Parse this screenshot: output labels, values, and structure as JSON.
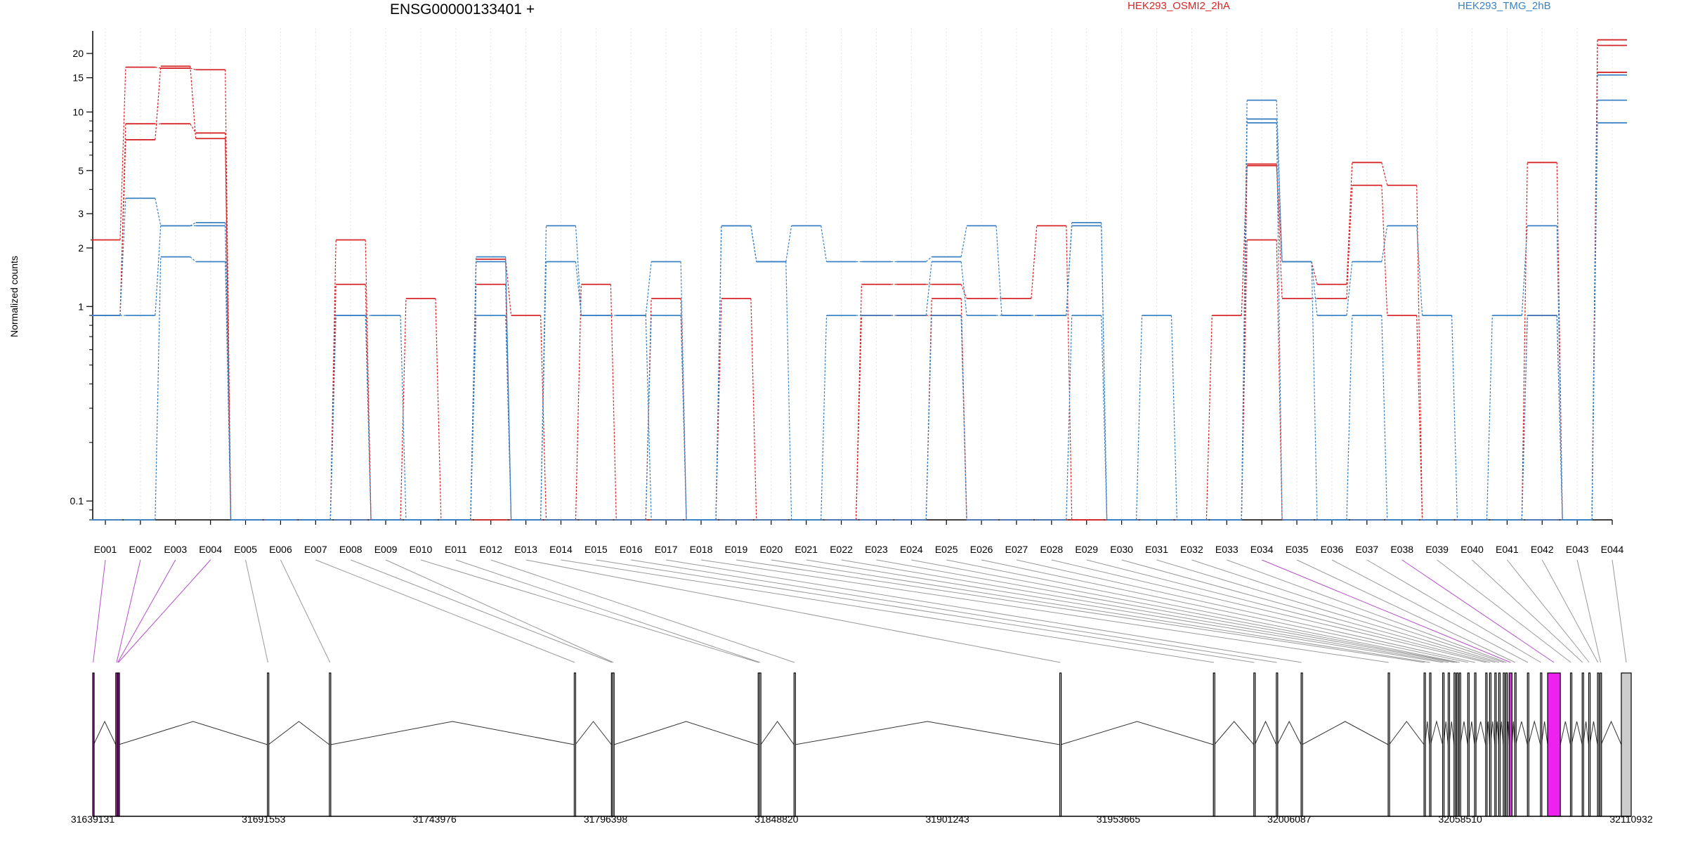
{
  "title": "ENSG00000133401 +",
  "ylabel": "Normalized counts",
  "legend": [
    {
      "name": "HEK293_OSMI2_2hA",
      "color": "#d62728"
    },
    {
      "name": "HEK293_TMG_2hB",
      "color": "#3b82c4"
    }
  ],
  "chart_data": [
    {
      "type": "line",
      "scale": "log",
      "ylabel": "Normalized counts",
      "ylim": [
        0.08,
        27
      ],
      "yticks": [
        0.1,
        1,
        2,
        3,
        5,
        10,
        15,
        20
      ],
      "categories": [
        "E001",
        "E002",
        "E003",
        "E004",
        "E005",
        "E006",
        "E007",
        "E008",
        "E009",
        "E010",
        "E011",
        "E012",
        "E013",
        "E014",
        "E015",
        "E016",
        "E017",
        "E018",
        "E019",
        "E020",
        "E021",
        "E022",
        "E023",
        "E024",
        "E025",
        "E026",
        "E027",
        "E028",
        "E029",
        "E030",
        "E031",
        "E032",
        "E033",
        "E034",
        "E035",
        "E036",
        "E037",
        "E038",
        "E039",
        "E040",
        "E041",
        "E042",
        "E043",
        "E044"
      ],
      "series": [
        {
          "name": "HEK293_OSMI2_2hA",
          "color": "#d62728",
          "values": [
            2.2,
            17,
            16.8,
            16.5,
            0.08,
            0.08,
            0.08,
            2.2,
            0.08,
            1.1,
            0.08,
            1.75,
            0.9,
            0.08,
            1.3,
            0.08,
            1.1,
            0.08,
            1.1,
            0.08,
            0.08,
            0.08,
            1.3,
            1.3,
            1.3,
            1.1,
            1.1,
            2.6,
            0.08,
            0.08,
            0.08,
            0.08,
            0.9,
            5.4,
            1.7,
            1.3,
            5.5,
            4.2,
            0.08,
            0.08,
            0.08,
            5.5,
            0.08,
            23.5
          ]
        },
        {
          "name": "HEK293_OSMI2_2hA",
          "color": "#d62728",
          "values": [
            0.9,
            7.2,
            17.2,
            7.3,
            0.08,
            0.08,
            0.08,
            1.3,
            0.08,
            0.08,
            0.08,
            1.3,
            0.08,
            0.08,
            0.08,
            0.08,
            0.08,
            0.08,
            0.08,
            0.08,
            0.08,
            0.08,
            0.08,
            0.08,
            1.1,
            0.08,
            0.08,
            0.08,
            0.08,
            0.08,
            0.08,
            0.08,
            0.08,
            5.3,
            1.1,
            1.1,
            4.2,
            0.9,
            0.08,
            0.08,
            0.08,
            0.9,
            0.08,
            22
          ]
        },
        {
          "name": "HEK293_OSMI2_2hA",
          "color": "#d62728",
          "values": [
            0.9,
            8.7,
            8.7,
            7.8,
            0.08,
            0.08,
            0.08,
            0.08,
            0.08,
            0.08,
            0.08,
            0.08,
            0.08,
            0.08,
            0.08,
            0.08,
            0.08,
            0.08,
            0.08,
            0.08,
            0.08,
            0.08,
            0.9,
            0.9,
            0.9,
            0.08,
            0.08,
            0.08,
            0.08,
            0.08,
            0.08,
            0.08,
            0.08,
            2.2,
            0.08,
            0.08,
            0.08,
            0.08,
            0.08,
            0.08,
            0.08,
            0.08,
            0.08,
            16
          ]
        },
        {
          "name": "HEK293_TMG_2hB",
          "color": "#3b82c4",
          "values": [
            0.9,
            3.6,
            2.6,
            2.7,
            0.08,
            0.08,
            0.08,
            0.9,
            0.9,
            0.08,
            0.08,
            1.8,
            0.08,
            2.6,
            0.9,
            0.9,
            1.7,
            0.08,
            2.6,
            1.7,
            2.6,
            1.7,
            1.7,
            1.7,
            1.8,
            2.6,
            0.9,
            0.9,
            2.7,
            0.08,
            0.9,
            0.08,
            0.08,
            11.5,
            1.7,
            0.9,
            1.7,
            2.6,
            0.9,
            0.08,
            0.9,
            2.6,
            0.08,
            15.5
          ]
        },
        {
          "name": "HEK293_TMG_2hB",
          "color": "#3b82c4",
          "values": [
            0.9,
            0.9,
            2.6,
            2.6,
            0.08,
            0.08,
            0.08,
            0.9,
            0.08,
            0.08,
            0.08,
            1.7,
            0.08,
            1.7,
            0.9,
            0.9,
            0.08,
            0.08,
            2.6,
            1.7,
            0.08,
            0.9,
            0.9,
            0.9,
            1.7,
            0.9,
            0.9,
            0.9,
            2.6,
            0.08,
            0.08,
            0.08,
            0.08,
            9.2,
            1.7,
            0.08,
            0.9,
            0.08,
            0.08,
            0.08,
            0.08,
            0.9,
            0.08,
            11.5
          ]
        },
        {
          "name": "HEK293_TMG_2hB",
          "color": "#3b82c4",
          "values": [
            0.08,
            0.08,
            1.8,
            1.7,
            0.08,
            0.08,
            0.08,
            0.08,
            0.08,
            0.08,
            0.08,
            0.9,
            0.08,
            0.08,
            0.08,
            0.08,
            0.9,
            0.08,
            0.08,
            0.08,
            0.08,
            0.08,
            0.08,
            0.08,
            0.9,
            0.08,
            0.08,
            0.08,
            0.9,
            0.08,
            0.08,
            0.08,
            0.08,
            8.8,
            0.08,
            0.08,
            0.08,
            0.08,
            0.08,
            0.08,
            0.08,
            0.08,
            0.08,
            8.8
          ]
        }
      ]
    },
    {
      "type": "gene-model",
      "xlim": [
        31639131,
        32110932
      ],
      "xticks": [
        31639131,
        31691553,
        31743976,
        31796398,
        31848820,
        31901243,
        31953665,
        32006087,
        32058510,
        32110932
      ],
      "exons": [
        {
          "id": "E001",
          "start": 31639131,
          "end": 31639400,
          "highlight": true
        },
        {
          "id": "E002",
          "start": 31646200,
          "end": 31646700,
          "highlight": true
        },
        {
          "id": "E003",
          "start": 31646700,
          "end": 31646900,
          "highlight": true
        },
        {
          "id": "E004",
          "start": 31646900,
          "end": 31647100,
          "highlight": true
        },
        {
          "id": "E005",
          "start": 31692700,
          "end": 31693000
        },
        {
          "id": "E006",
          "start": 31711700,
          "end": 31712100
        },
        {
          "id": "E007",
          "start": 31786800,
          "end": 31787100
        },
        {
          "id": "E008",
          "start": 31798200,
          "end": 31798500
        },
        {
          "id": "E009",
          "start": 31798600,
          "end": 31799000
        },
        {
          "id": "E010",
          "start": 31843200,
          "end": 31843500
        },
        {
          "id": "E011",
          "start": 31843600,
          "end": 31844000
        },
        {
          "id": "E012",
          "start": 31854200,
          "end": 31854500
        },
        {
          "id": "E013",
          "start": 31935700,
          "end": 31936000
        },
        {
          "id": "E014",
          "start": 31982800,
          "end": 31983100
        },
        {
          "id": "E015",
          "start": 31995200,
          "end": 31995500
        },
        {
          "id": "E016",
          "start": 32002100,
          "end": 32002400
        },
        {
          "id": "E017",
          "start": 32009700,
          "end": 32010000
        },
        {
          "id": "E018",
          "start": 32036400,
          "end": 32036700
        },
        {
          "id": "E019",
          "start": 32047400,
          "end": 32047700
        },
        {
          "id": "E020",
          "start": 32049100,
          "end": 32049400
        },
        {
          "id": "E021",
          "start": 32053100,
          "end": 32053400
        },
        {
          "id": "E022",
          "start": 32054800,
          "end": 32055100
        },
        {
          "id": "E023",
          "start": 32056600,
          "end": 32056900
        },
        {
          "id": "E024",
          "start": 32057400,
          "end": 32057700
        },
        {
          "id": "E025",
          "start": 32058200,
          "end": 32058500
        },
        {
          "id": "E026",
          "start": 32060800,
          "end": 32061100
        },
        {
          "id": "E027",
          "start": 32062900,
          "end": 32063200
        },
        {
          "id": "E028",
          "start": 32066300,
          "end": 32066600
        },
        {
          "id": "E029",
          "start": 32067500,
          "end": 32067800
        },
        {
          "id": "E030",
          "start": 32069100,
          "end": 32069400
        },
        {
          "id": "E031",
          "start": 32070300,
          "end": 32070600
        },
        {
          "id": "E032",
          "start": 32071700,
          "end": 32072000
        },
        {
          "id": "E033",
          "start": 32072500,
          "end": 32072800
        },
        {
          "id": "E034",
          "start": 32073500,
          "end": 32074400,
          "highlight": true
        },
        {
          "id": "E035",
          "start": 32075200,
          "end": 32075500
        },
        {
          "id": "E036",
          "start": 32079100,
          "end": 32079400
        },
        {
          "id": "E037",
          "start": 32083100,
          "end": 32083400
        },
        {
          "id": "E038",
          "start": 32085300,
          "end": 32089200,
          "highlight": true
        },
        {
          "id": "E039",
          "start": 32092300,
          "end": 32092600
        },
        {
          "id": "E040",
          "start": 32095900,
          "end": 32096200
        },
        {
          "id": "E041",
          "start": 32097900,
          "end": 32098200
        },
        {
          "id": "E042",
          "start": 32100600,
          "end": 32100900
        },
        {
          "id": "E043",
          "start": 32101400,
          "end": 32101700
        },
        {
          "id": "E044",
          "start": 32107900,
          "end": 32110932,
          "gray": true
        }
      ]
    }
  ]
}
